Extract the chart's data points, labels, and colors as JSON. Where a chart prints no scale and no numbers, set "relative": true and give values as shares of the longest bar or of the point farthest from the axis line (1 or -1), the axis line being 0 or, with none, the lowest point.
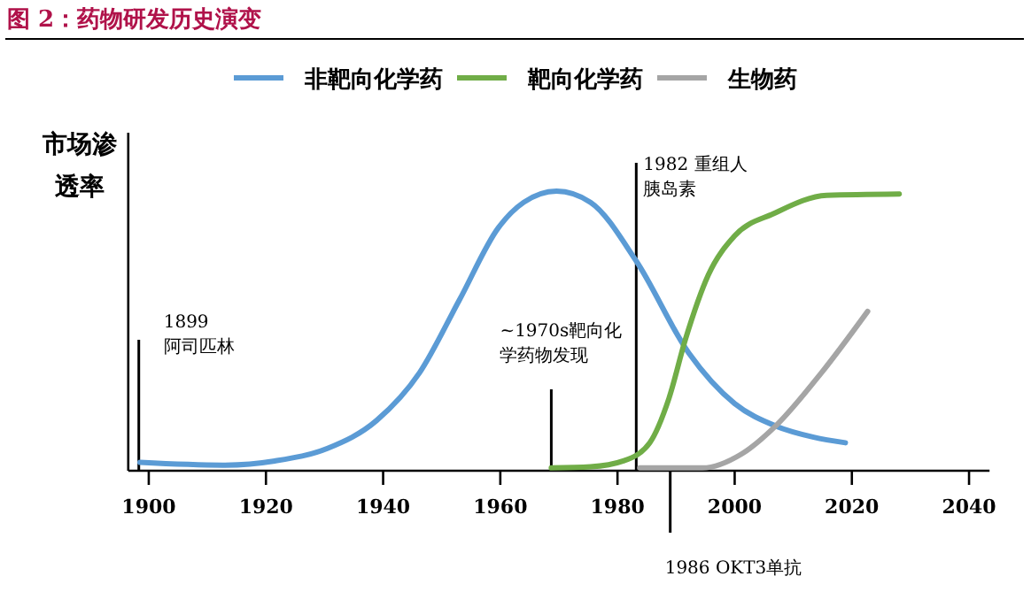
{
  "chart_data": {
    "type": "line",
    "title": "图 2：药物研发历史演变",
    "ylabel": "市场渗透率",
    "relative": true,
    "legend": "top",
    "marker": "none",
    "line_style": "solid",
    "xlim": [
      1896.5,
      2043.5
    ],
    "xticks": [
      1900,
      1920,
      1940,
      1960,
      1980,
      2000,
      2020,
      2040
    ],
    "series": [
      {
        "name": "非靶向化学药",
        "color": "#5b9bd5",
        "x": [
          1898.5,
          1912.6,
          1921.5,
          1930.5,
          1938.9,
          1946.2,
          1953,
          1959.7,
          1964,
          1969.6,
          1975.4,
          1983.2,
          1992.2,
          2000,
          2007,
          2013.5,
          2018.9
        ],
        "values": [
          0.03,
          0.02,
          0.035,
          0.08,
          0.18,
          0.35,
          0.61,
          0.87,
          0.96,
          1.0,
          0.96,
          0.75,
          0.42,
          0.24,
          0.16,
          0.12,
          0.1
        ]
      },
      {
        "name": "靶向化学药",
        "color": "#70ad47",
        "x": [
          1968.7,
          1975.4,
          1981,
          1985.5,
          1988.8,
          1991.6,
          1995.5,
          2000,
          2006.7,
          2015.7,
          2028.1
        ],
        "values": [
          0.01,
          0.014,
          0.035,
          0.1,
          0.26,
          0.47,
          0.7,
          0.84,
          0.92,
          0.985,
          0.99
        ]
      },
      {
        "name": "生物药",
        "color": "#a5a5a5",
        "x": [
          1983.8,
          1994.5,
          2001.2,
          2007,
          2014.8,
          2022.7
        ],
        "values": [
          0.01,
          0.01,
          0.06,
          0.16,
          0.35,
          0.57
        ]
      }
    ],
    "ref_lines": [
      {
        "axis": "x",
        "value": 1898.3,
        "label": "1899\n阿司匹林",
        "color": "#000000"
      },
      {
        "axis": "x",
        "value": 1968.7,
        "label": "~1970s靶向化学药物发现",
        "color": "#000000"
      },
      {
        "axis": "x",
        "value": 1983.2,
        "label": "1982 重组人胰岛素",
        "color": "#000000"
      },
      {
        "axis": "x",
        "value": 1989,
        "label": "1986 OKT3单抗",
        "color": "#000000"
      }
    ]
  }
}
